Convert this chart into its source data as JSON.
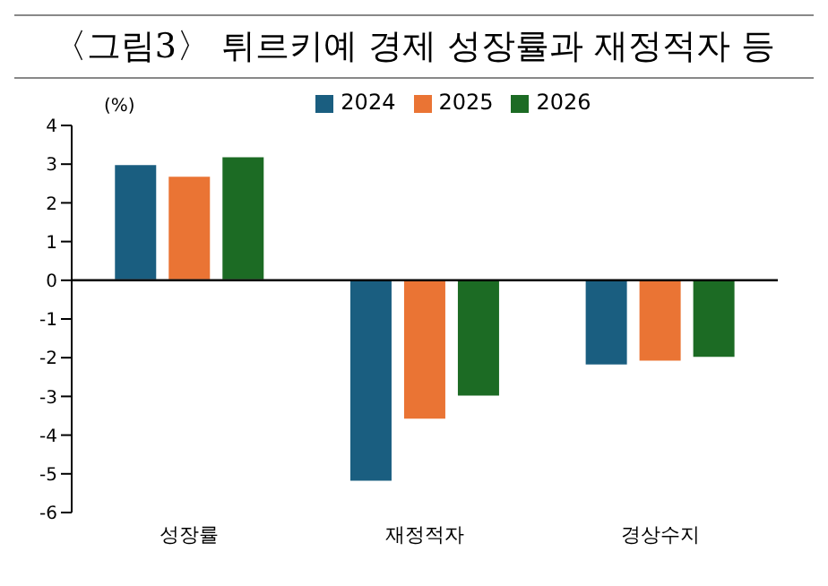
{
  "chart_data": {
    "type": "bar",
    "title": "〈그림3〉 튀르키예 경제 성장률과 재정적자 등",
    "ylabel": "(%)",
    "categories": [
      "성장률",
      "재정적자",
      "경상수지"
    ],
    "series": [
      {
        "name": "2024",
        "color": "#1a5e80",
        "values": [
          3.0,
          -5.2,
          -2.2
        ]
      },
      {
        "name": "2025",
        "color": "#ea7434",
        "values": [
          2.7,
          -3.6,
          -2.1
        ]
      },
      {
        "name": "2026",
        "color": "#1c6b24",
        "values": [
          3.2,
          -3.0,
          -2.0
        ]
      }
    ],
    "ylim": [
      -6,
      4
    ],
    "yticks": [
      -6,
      -5,
      -4,
      -3,
      -2,
      -1,
      0,
      1,
      2,
      3,
      4
    ],
    "ref_lines": [
      {
        "axis": "y",
        "value": 0,
        "color": "#000000"
      }
    ],
    "legend": "top"
  }
}
